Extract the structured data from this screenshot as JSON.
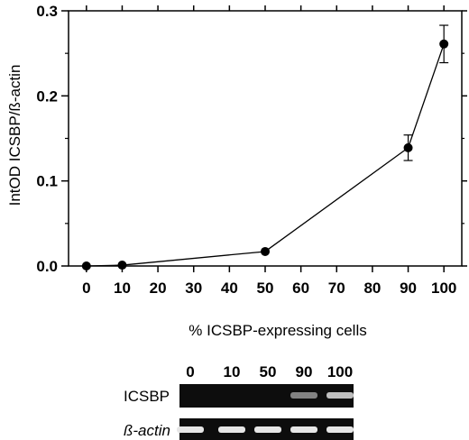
{
  "chart_data": {
    "type": "line",
    "title": "",
    "xlabel": "% ICSBP-expressing cells",
    "ylabel": "IntOD ICSBP/ß-actin",
    "xlim": [
      -5,
      105
    ],
    "ylim": [
      0,
      0.3
    ],
    "x_ticks": [
      "0",
      "10",
      "20",
      "30",
      "40",
      "50",
      "60",
      "70",
      "80",
      "90",
      "100"
    ],
    "y_ticks": [
      "0.0",
      "0.1",
      "0.2",
      "0.3"
    ],
    "grid": false,
    "series": [
      {
        "x": [
          0,
          10,
          50,
          90,
          100
        ],
        "y": [
          0.0,
          0.001,
          0.017,
          0.139,
          0.261
        ],
        "error": [
          0,
          0,
          0,
          0.015,
          0.022
        ]
      }
    ]
  },
  "gel": {
    "lanes": [
      "0",
      "10",
      "50",
      "90",
      "100"
    ],
    "rows": [
      {
        "label": "ICSBP",
        "band_intensity": [
          0.0,
          0.0,
          0.0,
          0.45,
          0.75
        ]
      },
      {
        "label": "ß-actin",
        "band_intensity": [
          0.95,
          0.95,
          0.95,
          0.95,
          0.95
        ]
      }
    ]
  }
}
